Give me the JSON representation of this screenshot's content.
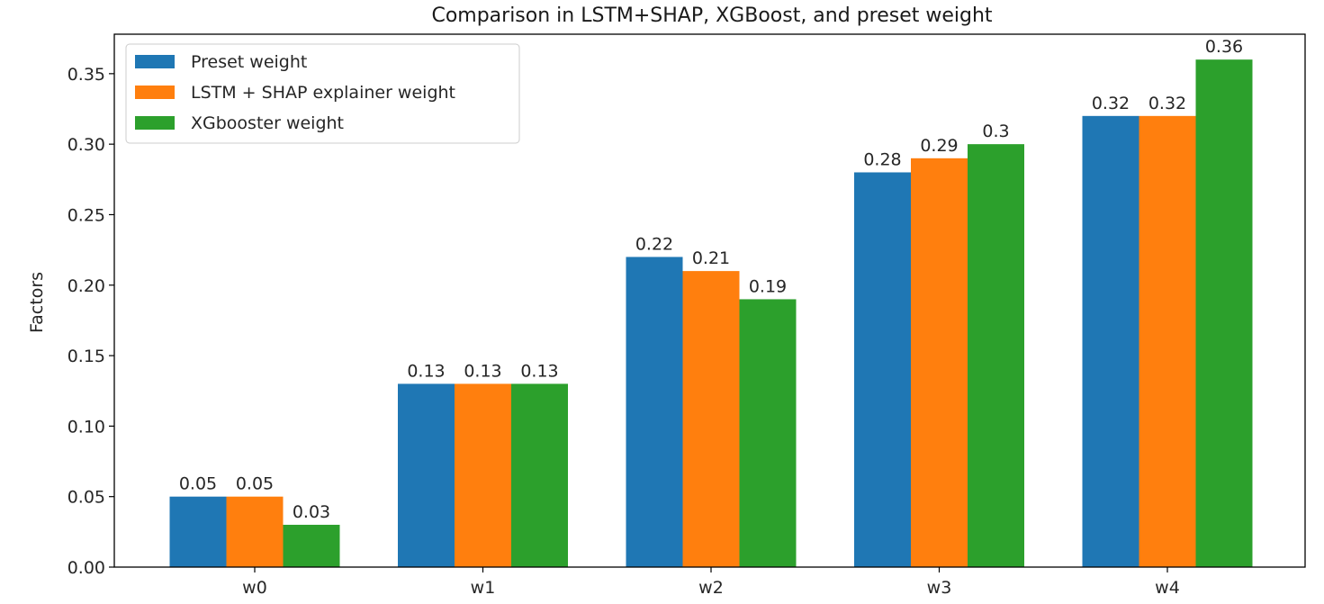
{
  "chart_data": {
    "type": "bar",
    "title": "Comparison in LSTM+SHAP, XGBoost, and preset weight",
    "xlabel": "",
    "ylabel": "Factors",
    "categories": [
      "w0",
      "w1",
      "w2",
      "w3",
      "w4"
    ],
    "series": [
      {
        "name": "Preset weight",
        "color": "#1f77b4",
        "values": [
          0.05,
          0.13,
          0.22,
          0.28,
          0.32
        ],
        "labels": [
          "0.05",
          "0.13",
          "0.22",
          "0.28",
          "0.32"
        ]
      },
      {
        "name": "LSTM + SHAP explainer weight",
        "color": "#ff7f0e",
        "values": [
          0.05,
          0.13,
          0.21,
          0.29,
          0.32
        ],
        "labels": [
          "0.05",
          "0.13",
          "0.21",
          "0.29",
          "0.32"
        ]
      },
      {
        "name": "XGbooster weight",
        "color": "#2ca02c",
        "values": [
          0.03,
          0.13,
          0.19,
          0.3,
          0.36
        ],
        "labels": [
          "0.03",
          "0.13",
          "0.19",
          "0.3",
          "0.36"
        ]
      }
    ],
    "ylim": [
      0,
      0.378
    ],
    "yticks": [
      0.0,
      0.05,
      0.1,
      0.15,
      0.2,
      0.25,
      0.3,
      0.35
    ],
    "ytick_labels": [
      "0.00",
      "0.05",
      "0.10",
      "0.15",
      "0.20",
      "0.25",
      "0.30",
      "0.35"
    ],
    "grid": false,
    "legend_position": "top-left"
  }
}
